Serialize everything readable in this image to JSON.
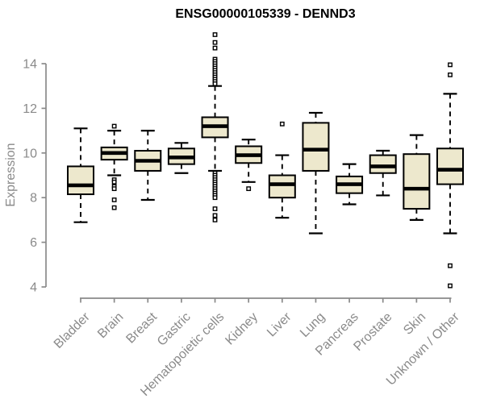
{
  "title": "ENSG00000105339 - DENND3",
  "chart_data": {
    "type": "boxplot",
    "title": "ENSG00000105339 - DENND3",
    "xlabel": "",
    "ylabel": "Expression",
    "y_ticks": [
      4,
      6,
      8,
      10,
      12,
      14
    ],
    "ylim": [
      3.8,
      15.6
    ],
    "grid": false,
    "legend": false,
    "categories": [
      "Bladder",
      "Brain",
      "Breast",
      "Gastric",
      "Hematopoietic cells",
      "Kidney",
      "Liver",
      "Lung",
      "Pancreas",
      "Prostate",
      "Skin",
      "Unknown / Other"
    ],
    "series": [
      {
        "name": "Bladder",
        "whisker_low": 6.9,
        "q1": 8.15,
        "median": 8.55,
        "q3": 9.4,
        "whisker_high": 11.1,
        "outliers": []
      },
      {
        "name": "Brain",
        "whisker_low": 9.0,
        "q1": 9.7,
        "median": 10.0,
        "q3": 10.25,
        "whisker_high": 11.0,
        "outliers": [
          11.2,
          8.8,
          8.7,
          8.5,
          8.4,
          7.9,
          7.55
        ]
      },
      {
        "name": "Breast",
        "whisker_low": 7.9,
        "q1": 9.2,
        "median": 9.65,
        "q3": 10.1,
        "whisker_high": 11.0,
        "outliers": []
      },
      {
        "name": "Gastric",
        "whisker_low": 9.1,
        "q1": 9.5,
        "median": 9.8,
        "q3": 10.2,
        "whisker_high": 10.45,
        "outliers": []
      },
      {
        "name": "Hematopoietic cells",
        "whisker_low": 9.2,
        "q1": 10.7,
        "median": 11.2,
        "q3": 11.6,
        "whisker_high": 13.0,
        "outliers": [
          15.3,
          14.95,
          14.7,
          14.2,
          14.1,
          14.0,
          13.9,
          13.8,
          13.7,
          13.6,
          13.5,
          13.4,
          13.3,
          13.2,
          13.1,
          9.1,
          9.0,
          8.9,
          8.8,
          8.7,
          8.6,
          8.5,
          8.4,
          8.3,
          8.2,
          8.1,
          8.0,
          7.5,
          7.2,
          7.0
        ]
      },
      {
        "name": "Kidney",
        "whisker_low": 8.7,
        "q1": 9.55,
        "median": 9.9,
        "q3": 10.3,
        "whisker_high": 10.6,
        "outliers": [
          8.4
        ]
      },
      {
        "name": "Liver",
        "whisker_low": 7.1,
        "q1": 8.0,
        "median": 8.6,
        "q3": 9.0,
        "whisker_high": 9.9,
        "outliers": [
          11.3
        ]
      },
      {
        "name": "Lung",
        "whisker_low": 6.4,
        "q1": 9.2,
        "median": 10.15,
        "q3": 11.35,
        "whisker_high": 11.8,
        "outliers": []
      },
      {
        "name": "Pancreas",
        "whisker_low": 7.7,
        "q1": 8.2,
        "median": 8.6,
        "q3": 8.95,
        "whisker_high": 9.5,
        "outliers": []
      },
      {
        "name": "Prostate",
        "whisker_low": 8.1,
        "q1": 9.1,
        "median": 9.4,
        "q3": 9.9,
        "whisker_high": 10.1,
        "outliers": []
      },
      {
        "name": "Skin",
        "whisker_low": 7.0,
        "q1": 7.5,
        "median": 8.4,
        "q3": 9.95,
        "whisker_high": 10.8,
        "outliers": []
      },
      {
        "name": "Unknown / Other",
        "whisker_low": 6.4,
        "q1": 8.6,
        "median": 9.25,
        "q3": 10.2,
        "whisker_high": 12.65,
        "outliers": [
          13.95,
          13.5,
          4.95,
          4.05
        ]
      }
    ],
    "colors": {
      "box_fill": "#EDE8CD",
      "box_stroke": "#000000",
      "median": "#000000",
      "whisker": "#000000",
      "axis": "#8a8a8a",
      "tick_text": "#8a8a8a",
      "title_text": "#000000",
      "background": "#ffffff"
    }
  }
}
